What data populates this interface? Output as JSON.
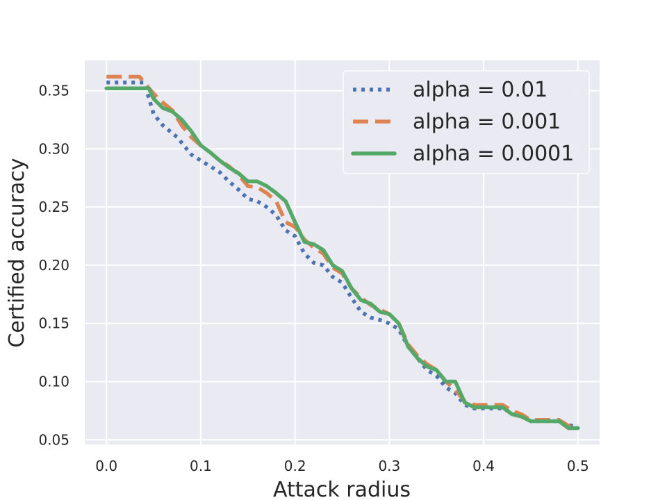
{
  "chart_data": {
    "type": "line",
    "title": "",
    "xlabel": "Attack radius",
    "ylabel": "Certified accuracy",
    "xlim": [
      -0.023,
      0.523
    ],
    "ylim": [
      0.046,
      0.376
    ],
    "xticks": [
      "0.0",
      "0.1",
      "0.2",
      "0.3",
      "0.4",
      "0.5"
    ],
    "yticks": [
      "0.05",
      "0.10",
      "0.15",
      "0.20",
      "0.25",
      "0.30",
      "0.35"
    ],
    "grid": true,
    "legend_position": "top-right",
    "series": [
      {
        "name": "alpha = 0.01",
        "color": "#4C72B0",
        "style": "dotted",
        "points": [
          [
            0.0,
            0.357
          ],
          [
            0.04,
            0.357
          ],
          [
            0.05,
            0.33
          ],
          [
            0.06,
            0.32
          ],
          [
            0.075,
            0.31
          ],
          [
            0.09,
            0.295
          ],
          [
            0.1,
            0.29
          ],
          [
            0.11,
            0.285
          ],
          [
            0.12,
            0.28
          ],
          [
            0.13,
            0.272
          ],
          [
            0.14,
            0.265
          ],
          [
            0.15,
            0.257
          ],
          [
            0.16,
            0.255
          ],
          [
            0.17,
            0.25
          ],
          [
            0.18,
            0.243
          ],
          [
            0.19,
            0.23
          ],
          [
            0.2,
            0.225
          ],
          [
            0.21,
            0.21
          ],
          [
            0.22,
            0.202
          ],
          [
            0.23,
            0.2
          ],
          [
            0.24,
            0.19
          ],
          [
            0.25,
            0.185
          ],
          [
            0.26,
            0.172
          ],
          [
            0.27,
            0.16
          ],
          [
            0.28,
            0.155
          ],
          [
            0.29,
            0.153
          ],
          [
            0.3,
            0.15
          ],
          [
            0.31,
            0.145
          ],
          [
            0.32,
            0.13
          ],
          [
            0.33,
            0.12
          ],
          [
            0.34,
            0.11
          ],
          [
            0.35,
            0.105
          ],
          [
            0.36,
            0.095
          ],
          [
            0.37,
            0.09
          ],
          [
            0.38,
            0.08
          ],
          [
            0.39,
            0.077
          ],
          [
            0.4,
            0.077
          ],
          [
            0.42,
            0.077
          ],
          [
            0.43,
            0.073
          ],
          [
            0.44,
            0.07
          ],
          [
            0.45,
            0.066
          ],
          [
            0.48,
            0.066
          ],
          [
            0.49,
            0.063
          ],
          [
            0.5,
            0.06
          ]
        ]
      },
      {
        "name": "alpha = 0.001",
        "color": "#DD8452",
        "style": "dashed",
        "points": [
          [
            0.0,
            0.362
          ],
          [
            0.035,
            0.362
          ],
          [
            0.045,
            0.352
          ],
          [
            0.055,
            0.343
          ],
          [
            0.07,
            0.333
          ],
          [
            0.08,
            0.32
          ],
          [
            0.09,
            0.31
          ],
          [
            0.1,
            0.303
          ],
          [
            0.11,
            0.297
          ],
          [
            0.12,
            0.29
          ],
          [
            0.13,
            0.285
          ],
          [
            0.14,
            0.278
          ],
          [
            0.15,
            0.268
          ],
          [
            0.16,
            0.267
          ],
          [
            0.17,
            0.262
          ],
          [
            0.18,
            0.255
          ],
          [
            0.19,
            0.237
          ],
          [
            0.2,
            0.233
          ],
          [
            0.21,
            0.222
          ],
          [
            0.22,
            0.215
          ],
          [
            0.23,
            0.21
          ],
          [
            0.24,
            0.198
          ],
          [
            0.25,
            0.193
          ],
          [
            0.26,
            0.18
          ],
          [
            0.27,
            0.172
          ],
          [
            0.28,
            0.166
          ],
          [
            0.29,
            0.162
          ],
          [
            0.3,
            0.158
          ],
          [
            0.31,
            0.15
          ],
          [
            0.32,
            0.132
          ],
          [
            0.33,
            0.122
          ],
          [
            0.34,
            0.115
          ],
          [
            0.35,
            0.11
          ],
          [
            0.36,
            0.1
          ],
          [
            0.37,
            0.093
          ],
          [
            0.38,
            0.083
          ],
          [
            0.39,
            0.08
          ],
          [
            0.42,
            0.08
          ],
          [
            0.43,
            0.075
          ],
          [
            0.44,
            0.072
          ],
          [
            0.45,
            0.067
          ],
          [
            0.48,
            0.067
          ],
          [
            0.49,
            0.062
          ],
          [
            0.5,
            0.062
          ]
        ]
      },
      {
        "name": "alpha = 0.0001",
        "color": "#55A868",
        "style": "solid",
        "points": [
          [
            0.0,
            0.352
          ],
          [
            0.045,
            0.352
          ],
          [
            0.05,
            0.343
          ],
          [
            0.06,
            0.335
          ],
          [
            0.07,
            0.332
          ],
          [
            0.08,
            0.325
          ],
          [
            0.09,
            0.315
          ],
          [
            0.1,
            0.303
          ],
          [
            0.11,
            0.297
          ],
          [
            0.12,
            0.29
          ],
          [
            0.13,
            0.284
          ],
          [
            0.14,
            0.279
          ],
          [
            0.15,
            0.272
          ],
          [
            0.16,
            0.272
          ],
          [
            0.17,
            0.268
          ],
          [
            0.18,
            0.262
          ],
          [
            0.19,
            0.255
          ],
          [
            0.2,
            0.237
          ],
          [
            0.21,
            0.22
          ],
          [
            0.22,
            0.218
          ],
          [
            0.23,
            0.213
          ],
          [
            0.24,
            0.2
          ],
          [
            0.25,
            0.195
          ],
          [
            0.26,
            0.18
          ],
          [
            0.27,
            0.17
          ],
          [
            0.28,
            0.167
          ],
          [
            0.29,
            0.16
          ],
          [
            0.3,
            0.158
          ],
          [
            0.31,
            0.15
          ],
          [
            0.32,
            0.13
          ],
          [
            0.33,
            0.12
          ],
          [
            0.34,
            0.113
          ],
          [
            0.35,
            0.11
          ],
          [
            0.36,
            0.1
          ],
          [
            0.37,
            0.1
          ],
          [
            0.38,
            0.082
          ],
          [
            0.39,
            0.078
          ],
          [
            0.42,
            0.078
          ],
          [
            0.43,
            0.072
          ],
          [
            0.44,
            0.07
          ],
          [
            0.45,
            0.066
          ],
          [
            0.48,
            0.066
          ],
          [
            0.49,
            0.06
          ],
          [
            0.5,
            0.06
          ]
        ]
      }
    ]
  }
}
